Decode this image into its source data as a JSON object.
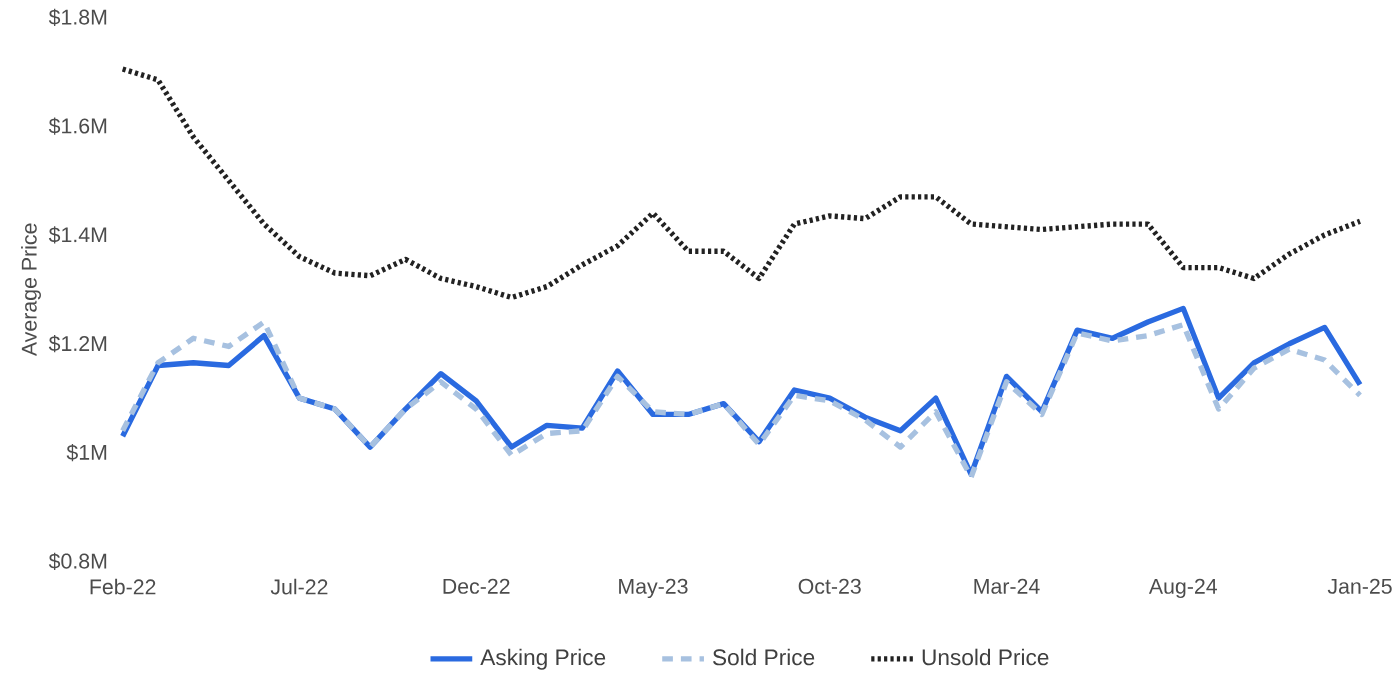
{
  "chart_data": {
    "type": "line",
    "ylabel": "Average Price",
    "categories": [
      "Feb-22",
      null,
      null,
      null,
      null,
      "Jul-22",
      null,
      null,
      null,
      null,
      "Dec-22",
      null,
      null,
      null,
      null,
      "May-23",
      null,
      null,
      null,
      null,
      "Oct-23",
      null,
      null,
      null,
      null,
      "Mar-24",
      null,
      null,
      null,
      null,
      "Aug-24",
      null,
      null,
      null,
      null,
      "Jan-25"
    ],
    "series": [
      {
        "name": "Asking Price",
        "color": "#2a6ae0",
        "line_style": "solid",
        "values": [
          1.03,
          1.16,
          1.165,
          1.16,
          1.215,
          1.1,
          1.08,
          1.01,
          1.08,
          1.145,
          1.095,
          1.01,
          1.05,
          1.045,
          1.15,
          1.07,
          1.07,
          1.09,
          1.02,
          1.115,
          1.1,
          1.065,
          1.04,
          1.1,
          0.96,
          1.14,
          1.075,
          1.225,
          1.21,
          1.24,
          1.265,
          1.1,
          1.165,
          1.2,
          1.23,
          1.125
        ]
      },
      {
        "name": "Sold Price",
        "color": "#a7c1e0",
        "line_style": "dashed",
        "values": [
          1.04,
          1.165,
          1.21,
          1.195,
          1.24,
          1.1,
          1.08,
          1.01,
          1.08,
          1.13,
          1.08,
          0.995,
          1.035,
          1.04,
          1.14,
          1.075,
          1.07,
          1.09,
          1.015,
          1.105,
          1.095,
          1.06,
          1.01,
          1.075,
          0.955,
          1.13,
          1.07,
          1.22,
          1.205,
          1.215,
          1.235,
          1.08,
          1.155,
          1.19,
          1.17,
          1.105
        ]
      },
      {
        "name": "Unsold Price",
        "color": "#222222",
        "line_style": "dotted",
        "values": [
          1.705,
          1.685,
          1.58,
          1.5,
          1.42,
          1.36,
          1.33,
          1.325,
          1.355,
          1.32,
          1.305,
          1.285,
          1.305,
          1.345,
          1.38,
          1.44,
          1.37,
          1.37,
          1.32,
          1.42,
          1.435,
          1.43,
          1.47,
          1.47,
          1.42,
          1.415,
          1.41,
          1.415,
          1.42,
          1.42,
          1.34,
          1.34,
          1.32,
          1.365,
          1.4,
          1.425
        ]
      }
    ],
    "ylim": [
      0.8,
      1.8
    ],
    "yticks": [
      {
        "value": 0.8,
        "label": "$0.8M"
      },
      {
        "value": 1.0,
        "label": "$1M"
      },
      {
        "value": 1.2,
        "label": "$1.2M"
      },
      {
        "value": 1.4,
        "label": "$1.4M"
      },
      {
        "value": 1.6,
        "label": "$1.6M"
      },
      {
        "value": 1.8,
        "label": "$1.8M"
      }
    ],
    "legend": "bottom"
  }
}
